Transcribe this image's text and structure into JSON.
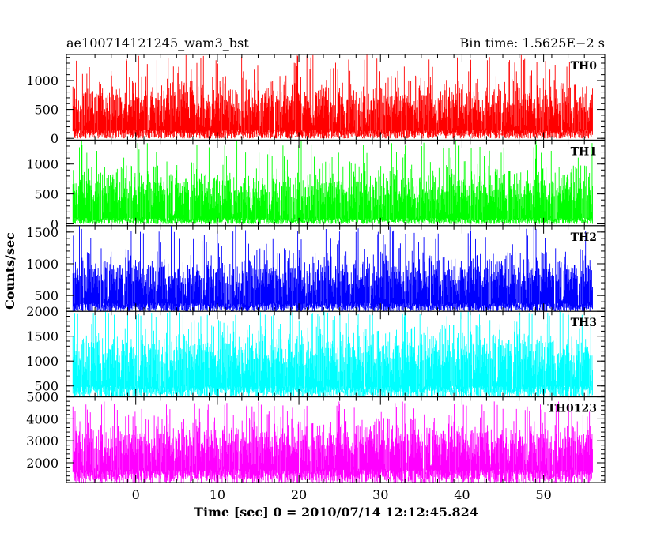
{
  "chart_data": {
    "type": "line",
    "title": "ae100714121245_wam3_bst",
    "subtitle": "Bin time: 1.5625E−2 s",
    "xlabel": "Time [sec] 0 = 2010/07/14 12:12:45.824",
    "ylabel": "Counts/sec",
    "xlim": [
      -8.5,
      57.5
    ],
    "x_ticks": [
      0,
      10,
      20,
      30,
      40,
      50
    ],
    "x_tick_labels": [
      "0",
      "10",
      "20",
      "30",
      "40",
      "50"
    ],
    "data_range_x": [
      -7.7,
      56.0
    ],
    "panels": [
      {
        "name": "TH0",
        "color": "#ff0000",
        "ylim": [
          -30,
          1450
        ],
        "y_ticks": [
          0,
          500,
          1000
        ],
        "y_tick_labels": [
          "0",
          "500",
          "1000"
        ],
        "baseline": 0,
        "typical_range": [
          150,
          1150
        ],
        "approx_mean": 600,
        "max_approx": 1450
      },
      {
        "name": "TH1",
        "color": "#00ff00",
        "ylim": [
          -30,
          1400
        ],
        "y_ticks": [
          0,
          500,
          1000
        ],
        "y_tick_labels": [
          "0",
          "500",
          "1000"
        ],
        "baseline": 0,
        "typical_range": [
          100,
          1100
        ],
        "approx_mean": 560,
        "max_approx": 1400
      },
      {
        "name": "TH2",
        "color": "#0000ff",
        "ylim": [
          250,
          1600
        ],
        "y_ticks": [
          500,
          1000,
          1500
        ],
        "y_tick_labels": [
          "500",
          "1000",
          "1500"
        ],
        "baseline": 250,
        "typical_range": [
          380,
          1300
        ],
        "approx_mean": 800,
        "max_approx": 1600
      },
      {
        "name": "TH3",
        "color": "#00ffff",
        "ylim": [
          280,
          2000
        ],
        "y_ticks": [
          500,
          1000,
          1500,
          2000
        ],
        "y_tick_labels": [
          "500",
          "1000",
          "1500",
          "2000"
        ],
        "baseline": 280,
        "typical_range": [
          500,
          1900
        ],
        "approx_mean": 1150,
        "max_approx": 2000
      },
      {
        "name": "TH0123",
        "color": "#ff00ff",
        "ylim": [
          1100,
          5000
        ],
        "y_ticks": [
          2000,
          3000,
          4000,
          5000
        ],
        "y_tick_labels": [
          "2000",
          "3000",
          "4000",
          "5000"
        ],
        "baseline": 1100,
        "typical_range": [
          1700,
          4300
        ],
        "approx_mean": 2950,
        "max_approx": 4800
      }
    ]
  }
}
